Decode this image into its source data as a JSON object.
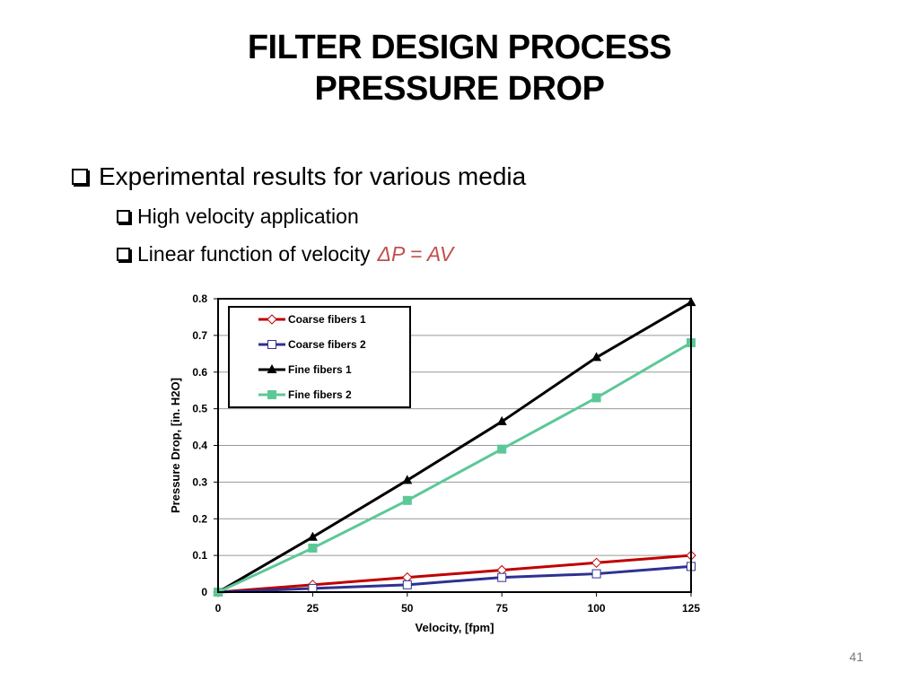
{
  "slide": {
    "title_line1": "FILTER DESIGN PROCESS",
    "title_line2": "PRESSURE DROP",
    "bullets": [
      {
        "text": "Experimental results for various media"
      },
      {
        "text": "High velocity application"
      },
      {
        "text": "Linear function of velocity",
        "formula": "ΔP = AV"
      }
    ],
    "page_number": "41"
  },
  "chart_data": {
    "type": "line",
    "xlabel": "Velocity, [fpm]",
    "ylabel": "Pressure Drop, [in. H2O]",
    "xlim": [
      0,
      125
    ],
    "ylim": [
      0,
      0.8
    ],
    "xticks": [
      0,
      25,
      50,
      75,
      100,
      125
    ],
    "yticks": [
      0,
      0.1,
      0.2,
      0.3,
      0.4,
      0.5,
      0.6,
      0.7,
      0.8
    ],
    "grid": "horizontal",
    "legend_position": "top-left",
    "series": [
      {
        "name": "Coarse fibers 1",
        "color": "#c00000",
        "marker": "diamond-open",
        "x": [
          0,
          25,
          50,
          75,
          100,
          125
        ],
        "y": [
          0,
          0.02,
          0.04,
          0.06,
          0.08,
          0.1
        ]
      },
      {
        "name": "Coarse fibers 2",
        "color": "#2e3192",
        "marker": "square-open",
        "x": [
          0,
          25,
          50,
          75,
          100,
          125
        ],
        "y": [
          0,
          0.01,
          0.02,
          0.04,
          0.05,
          0.07
        ]
      },
      {
        "name": "Fine fibers 1",
        "color": "#000000",
        "marker": "triangle",
        "x": [
          0,
          25,
          50,
          75,
          100,
          125
        ],
        "y": [
          0,
          0.15,
          0.305,
          0.465,
          0.64,
          0.79
        ]
      },
      {
        "name": "Fine fibers 2",
        "color": "#5cc897",
        "marker": "square",
        "x": [
          0,
          25,
          50,
          75,
          100,
          125
        ],
        "y": [
          0,
          0.12,
          0.25,
          0.39,
          0.53,
          0.68
        ]
      }
    ]
  }
}
